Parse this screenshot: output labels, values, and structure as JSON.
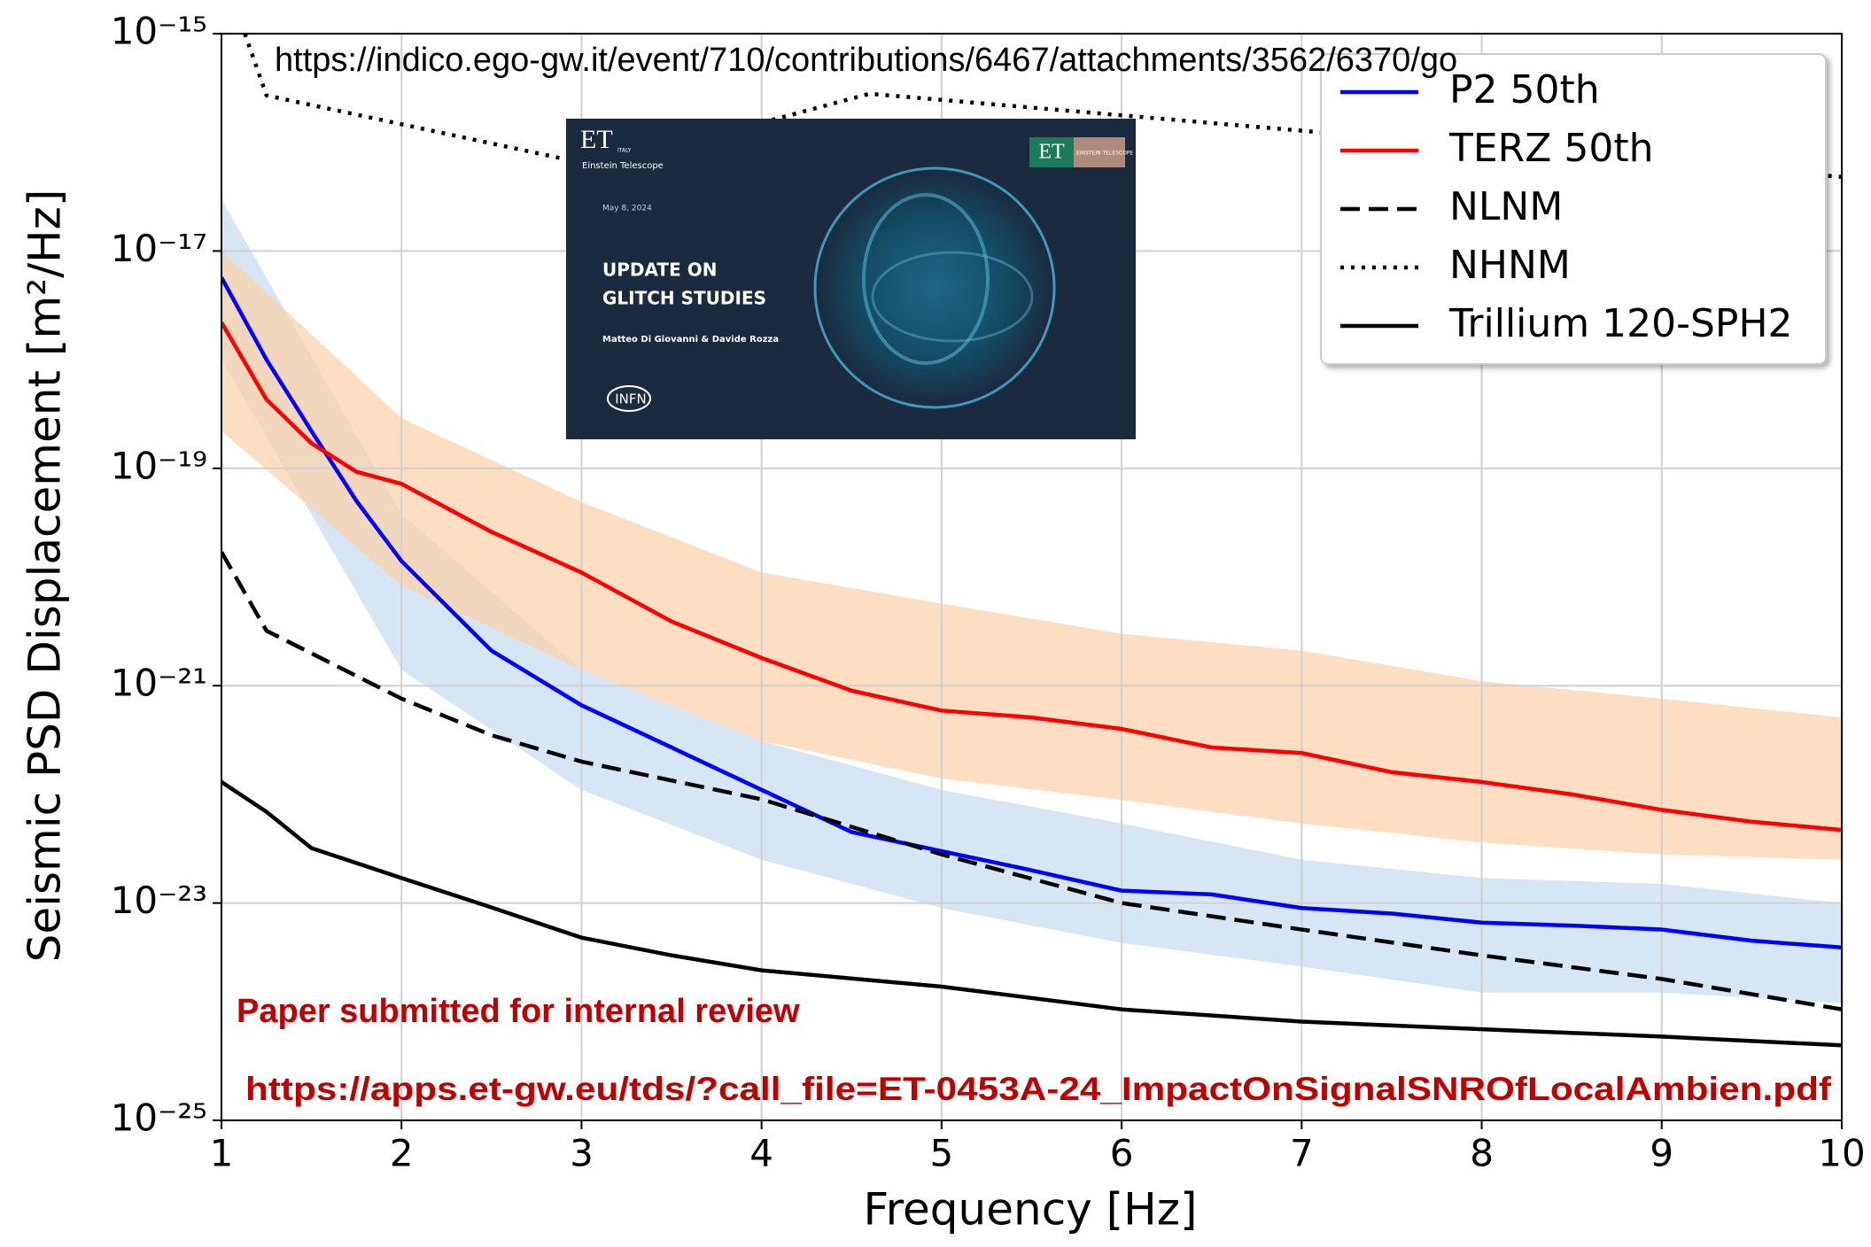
{
  "chart_data": {
    "type": "line",
    "xlabel": "Frequency [Hz]",
    "ylabel": "Seismic PSD Displacement [m²/Hz]",
    "xlim": [
      1,
      10
    ],
    "xticks": [
      1,
      2,
      3,
      4,
      5,
      6,
      7,
      8,
      9,
      10
    ],
    "ylim": [
      1e-25,
      1e-15
    ],
    "yscale": "log",
    "yticks": [
      {
        "value": 1e-25,
        "label": "10⁻²⁵"
      },
      {
        "value": 1e-23,
        "label": "10⁻²³"
      },
      {
        "value": 1e-21,
        "label": "10⁻²¹"
      },
      {
        "value": 1e-19,
        "label": "10⁻¹⁹"
      },
      {
        "value": 1e-17,
        "label": "10⁻¹⁷"
      },
      {
        "value": 1e-15,
        "label": "10⁻¹⁵"
      }
    ],
    "grid": true,
    "legend": "upper right",
    "series": [
      {
        "name": "P2 50th",
        "color": "#0000ff",
        "dash": "solid",
        "x": [
          1,
          1.25,
          1.5,
          1.75,
          2,
          2.5,
          3,
          3.5,
          4,
          4.5,
          5,
          5.5,
          6,
          6.5,
          7,
          7.5,
          8,
          8.5,
          9,
          9.5,
          10
        ],
        "values": [
          5.7e-18,
          1e-18,
          2.2e-19,
          5e-20,
          1.4e-20,
          2.1e-21,
          6.6e-22,
          2.7e-22,
          1.1e-22,
          4.5e-23,
          3e-23,
          2e-23,
          1.3e-23,
          1.2e-23,
          9e-24,
          8e-24,
          6.6e-24,
          6.2e-24,
          5.7e-24,
          4.5e-24,
          3.9e-24
        ]
      },
      {
        "name": "TERZ 50th",
        "color": "#ff0000",
        "dash": "solid",
        "x": [
          1,
          1.25,
          1.5,
          1.75,
          2,
          2.5,
          3,
          3.5,
          4,
          4.5,
          5,
          5.5,
          6,
          6.5,
          7,
          7.5,
          8,
          8.5,
          9,
          9.5,
          10
        ],
        "values": [
          2.2e-18,
          4.3e-19,
          1.7e-19,
          9.3e-20,
          7.2e-20,
          2.6e-20,
          1.1e-20,
          3.9e-21,
          1.8e-21,
          9e-22,
          5.9e-22,
          5.1e-22,
          4e-22,
          2.7e-22,
          2.4e-22,
          1.6e-22,
          1.3e-22,
          1e-22,
          7.2e-23,
          5.6e-23,
          4.7e-23
        ]
      },
      {
        "name": "NLNM",
        "color": "#000000",
        "dash": "dashed",
        "x": [
          1,
          1.25,
          2,
          2.5,
          3,
          4,
          5,
          6,
          7,
          8,
          9,
          10
        ],
        "values": [
          1.7e-20,
          3.2e-21,
          7.6e-22,
          3.5e-22,
          2e-22,
          9e-23,
          2.8e-23,
          1e-23,
          5.7e-24,
          3.3e-24,
          2e-24,
          1.05e-24
        ]
      },
      {
        "name": "NHNM",
        "color": "#000000",
        "dash": "dotted",
        "x": [
          1.13,
          1.25,
          3.1,
          4.6,
          10
        ],
        "values": [
          1e-15,
          2.7e-16,
          6e-17,
          2.8e-16,
          4.8e-17
        ]
      },
      {
        "name": "Trillium 120-SPH2",
        "color": "#000000",
        "dash": "solid",
        "x": [
          1,
          1.25,
          1.5,
          2,
          2.5,
          3,
          3.5,
          4,
          5,
          6,
          7,
          8,
          9,
          10
        ],
        "values": [
          1.3e-22,
          6.9e-23,
          3.2e-23,
          1.7e-23,
          9.1e-24,
          4.8e-24,
          3.3e-24,
          2.4e-24,
          1.7e-24,
          1.05e-24,
          8.1e-25,
          6.9e-25,
          5.9e-25,
          4.9e-25
        ]
      }
    ],
    "bands": [
      {
        "color": "#c6dbef",
        "x": [
          1,
          2,
          3,
          4,
          5,
          6,
          7,
          8,
          9,
          10
        ],
        "upper": [
          3e-17,
          3.8e-20,
          1.4e-21,
          3.1e-22,
          1.1e-22,
          5.4e-23,
          2.5e-23,
          1.7e-23,
          1.5e-23,
          1e-23
        ],
        "lower": [
          1e-18,
          1.4e-21,
          1.1e-22,
          2.5e-23,
          9e-24,
          4.3e-24,
          2.6e-24,
          1.5e-24,
          1.5e-24,
          1.2e-24
        ]
      },
      {
        "color": "#fdd0a8",
        "x": [
          1,
          2,
          3,
          4,
          5,
          6,
          7,
          8,
          9,
          10
        ],
        "upper": [
          1e-17,
          2.9e-19,
          4.9e-20,
          1.1e-20,
          5.7e-21,
          3e-21,
          2.1e-21,
          1.1e-21,
          7.6e-22,
          5.1e-22
        ],
        "lower": [
          2.2e-19,
          8.3e-21,
          1.4e-21,
          3.1e-22,
          1.4e-22,
          8.9e-23,
          5.4e-23,
          3.6e-23,
          2.8e-23,
          2.5e-23
        ]
      }
    ],
    "annotations": [
      "https://indico.ego-gw.it/event/710/contributions/6467/attachments/3562/6370/go",
      "Paper submitted for internal review",
      "https://apps.et-gw.eu/tds/?call_file=ET-0453A-24_ImpactOnSignalSNROfLocalAmbien.pdf"
    ]
  },
  "slide": {
    "logo": "ET",
    "logo_tag": "ITALY",
    "logo_sub": "Einstein Telescope",
    "partner": "ET",
    "partner_sub": "EINSTEIN TELESCOPE",
    "date": "May 8, 2024",
    "title_lines": [
      "UPDATE ON",
      "GLITCH STUDIES"
    ],
    "authors": "Matteo Di Giovanni & Davide Rozza",
    "org": "INFN"
  }
}
